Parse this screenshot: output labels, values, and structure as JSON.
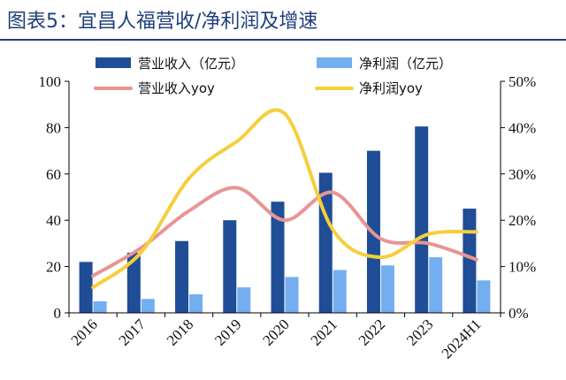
{
  "header": {
    "title": "图表5：宜昌人福营收/净利润及增速"
  },
  "colors": {
    "title": "#1f3f7a",
    "revenue_bar": "#1f4e96",
    "profit_bar": "#73aef0",
    "revenue_yoy": "#e99493",
    "profit_yoy": "#f5cf3b",
    "axis": "#000000"
  },
  "chart_data": {
    "type": "bar",
    "title": "图表5：宜昌人福营收/净利润及增速",
    "categories": [
      "2016",
      "2017",
      "2018",
      "2019",
      "2020",
      "2021",
      "2022",
      "2023",
      "2024H1"
    ],
    "series": [
      {
        "name": "营业收入（亿元）",
        "type": "bar",
        "axis": "left",
        "values": [
          22,
          26,
          31,
          40,
          48,
          60.5,
          70,
          80.5,
          45
        ]
      },
      {
        "name": "净利润（亿元）",
        "type": "bar",
        "axis": "left",
        "values": [
          5,
          6,
          8,
          11,
          15.5,
          18.5,
          20.5,
          24,
          14
        ]
      },
      {
        "name": "营业收入yoy",
        "type": "line",
        "axis": "right",
        "values": [
          8,
          14,
          22,
          27,
          20,
          26,
          16,
          15,
          11.5
        ]
      },
      {
        "name": "净利润yoy",
        "type": "line",
        "axis": "right",
        "values": [
          5.5,
          13,
          29,
          37,
          43,
          18,
          12,
          17,
          17.5
        ]
      }
    ],
    "y_left": {
      "ylim": [
        0,
        100
      ],
      "ticks": [
        "0",
        "20",
        "40",
        "60",
        "80",
        "100"
      ]
    },
    "y_right": {
      "ylim": [
        0,
        50
      ],
      "ticks": [
        "0%",
        "10%",
        "20%",
        "30%",
        "40%",
        "50%"
      ]
    },
    "legend": {
      "placement": "top",
      "entries": [
        "营业收入（亿元）",
        "净利润（亿元）",
        "营业收入yoy",
        "净利润yoy"
      ]
    }
  }
}
